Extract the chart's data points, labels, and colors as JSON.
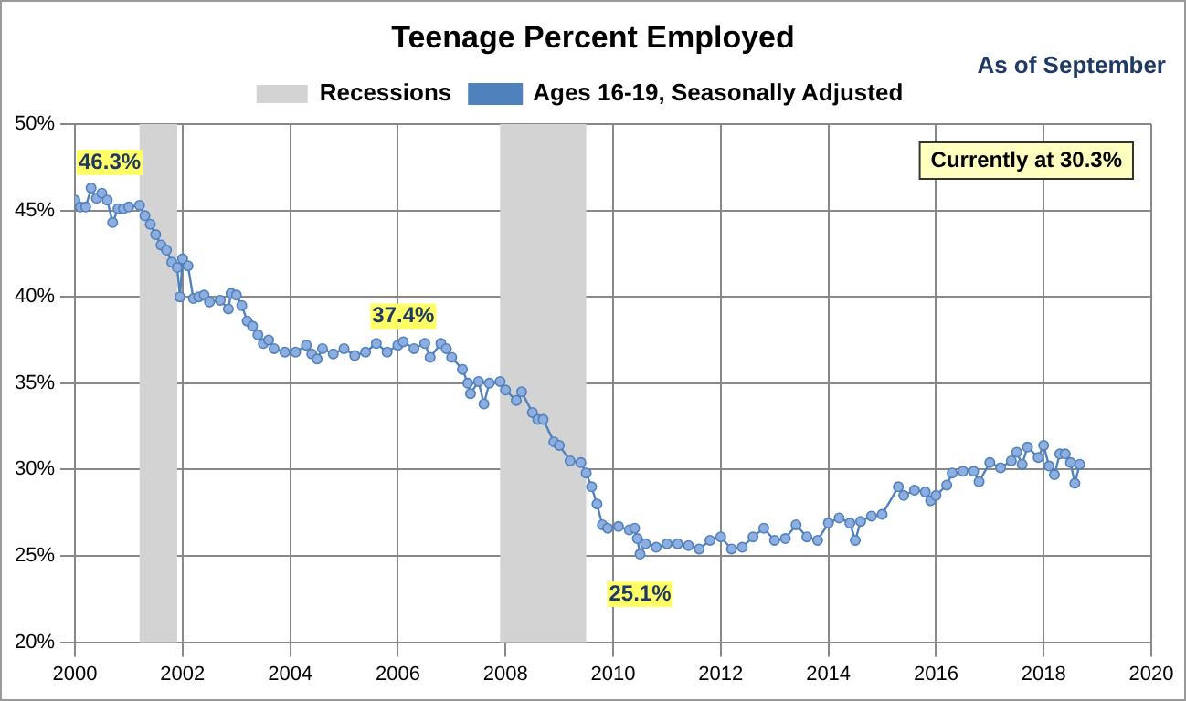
{
  "chart_data": {
    "type": "line",
    "title": "Teenage Percent Employed",
    "subtitle": "As of September",
    "x": [
      2000.0,
      2000.1,
      2000.2,
      2000.3,
      2000.4,
      2000.5,
      2000.6,
      2000.7,
      2000.8,
      2000.9,
      2001.0,
      2001.2,
      2001.3,
      2001.4,
      2001.5,
      2001.6,
      2001.7,
      2001.8,
      2001.9,
      2001.95,
      2002.0,
      2002.1,
      2002.2,
      2002.3,
      2002.4,
      2002.5,
      2002.7,
      2002.85,
      2002.9,
      2003.0,
      2003.1,
      2003.2,
      2003.3,
      2003.4,
      2003.5,
      2003.6,
      2003.7,
      2003.9,
      2004.1,
      2004.3,
      2004.4,
      2004.5,
      2004.6,
      2004.8,
      2005.0,
      2005.2,
      2005.4,
      2005.6,
      2005.8,
      2006.0,
      2006.1,
      2006.3,
      2006.5,
      2006.6,
      2006.8,
      2006.9,
      2007.0,
      2007.2,
      2007.3,
      2007.35,
      2007.5,
      2007.6,
      2007.7,
      2007.9,
      2008.0,
      2008.2,
      2008.3,
      2008.5,
      2008.6,
      2008.7,
      2008.9,
      2009.0,
      2009.2,
      2009.4,
      2009.5,
      2009.6,
      2009.7,
      2009.8,
      2009.9,
      2010.1,
      2010.3,
      2010.4,
      2010.45,
      2010.5,
      2010.6,
      2010.8,
      2011.0,
      2011.2,
      2011.4,
      2011.6,
      2011.8,
      2012.0,
      2012.2,
      2012.4,
      2012.6,
      2012.8,
      2013.0,
      2013.2,
      2013.4,
      2013.6,
      2013.8,
      2014.0,
      2014.2,
      2014.4,
      2014.5,
      2014.6,
      2014.8,
      2015.0,
      2015.3,
      2015.4,
      2015.6,
      2015.8,
      2015.9,
      2016.0,
      2016.2,
      2016.3,
      2016.5,
      2016.7,
      2016.8,
      2017.0,
      2017.2,
      2017.4,
      2017.5,
      2017.6,
      2017.7,
      2017.9,
      2018.0,
      2018.1,
      2018.2,
      2018.3,
      2018.4,
      2018.5,
      2018.58,
      2018.67
    ],
    "series": [
      {
        "name": "Ages 16-19, Seasonally Adjusted",
        "color": "#4f81bd",
        "values": [
          45.6,
          45.2,
          45.2,
          46.3,
          45.7,
          46.0,
          45.6,
          44.3,
          45.1,
          45.1,
          45.2,
          45.3,
          44.7,
          44.2,
          43.6,
          43.0,
          42.7,
          42.0,
          41.7,
          40.0,
          42.2,
          41.8,
          39.9,
          40.0,
          40.1,
          39.7,
          39.8,
          39.3,
          40.2,
          40.1,
          39.5,
          38.6,
          38.3,
          37.8,
          37.3,
          37.5,
          37.0,
          36.8,
          36.8,
          37.2,
          36.7,
          36.4,
          37.0,
          36.7,
          37.0,
          36.6,
          36.8,
          37.3,
          36.8,
          37.2,
          37.4,
          37.0,
          37.3,
          36.5,
          37.3,
          37.0,
          36.5,
          35.8,
          35.0,
          34.4,
          35.1,
          33.8,
          35.0,
          35.1,
          34.6,
          34.0,
          34.5,
          33.3,
          32.9,
          32.9,
          31.6,
          31.4,
          30.5,
          30.4,
          29.8,
          29.0,
          28.0,
          26.8,
          26.6,
          26.7,
          26.5,
          26.6,
          26.0,
          25.1,
          25.7,
          25.5,
          25.7,
          25.7,
          25.6,
          25.4,
          25.9,
          26.1,
          25.4,
          25.5,
          26.1,
          26.6,
          25.9,
          26.0,
          26.8,
          26.1,
          25.9,
          26.9,
          27.2,
          26.9,
          25.9,
          27.0,
          27.3,
          27.4,
          29.0,
          28.5,
          28.8,
          28.7,
          28.2,
          28.5,
          29.1,
          29.8,
          29.9,
          29.9,
          29.3,
          30.4,
          30.1,
          30.5,
          31.0,
          30.3,
          31.3,
          30.7,
          31.4,
          30.2,
          29.7,
          30.9,
          30.9,
          30.4,
          29.2,
          30.3
        ]
      }
    ],
    "xlim": [
      2000,
      2020
    ],
    "xticks": [
      2000,
      2002,
      2004,
      2006,
      2008,
      2010,
      2012,
      2014,
      2016,
      2018,
      2020
    ],
    "ylim": [
      20,
      50
    ],
    "yticks": [
      {
        "value": 20,
        "label": "20%"
      },
      {
        "value": 25,
        "label": "25%"
      },
      {
        "value": 30,
        "label": "30%"
      },
      {
        "value": 35,
        "label": "35%"
      },
      {
        "value": 40,
        "label": "40%"
      },
      {
        "value": 45,
        "label": "45%"
      },
      {
        "value": 50,
        "label": "50%"
      }
    ],
    "bands": [
      {
        "axis": "x",
        "from": 2001.2,
        "to": 2001.9,
        "label": "Recessions",
        "color": "#d3d3d3"
      },
      {
        "axis": "x",
        "from": 2007.9,
        "to": 2009.5,
        "color": "#d3d3d3"
      }
    ],
    "annotations": [
      {
        "text": "46.3%",
        "x": 2000.3,
        "y": 46.3
      },
      {
        "text": "37.4%",
        "x": 2006.1,
        "y": 37.4
      },
      {
        "text": "25.1%",
        "x": 2010.5,
        "y": 25.1
      },
      "Currently at 30.3%"
    ],
    "grid": true,
    "legend": "top",
    "marker": "circle",
    "line_style": "solid"
  }
}
